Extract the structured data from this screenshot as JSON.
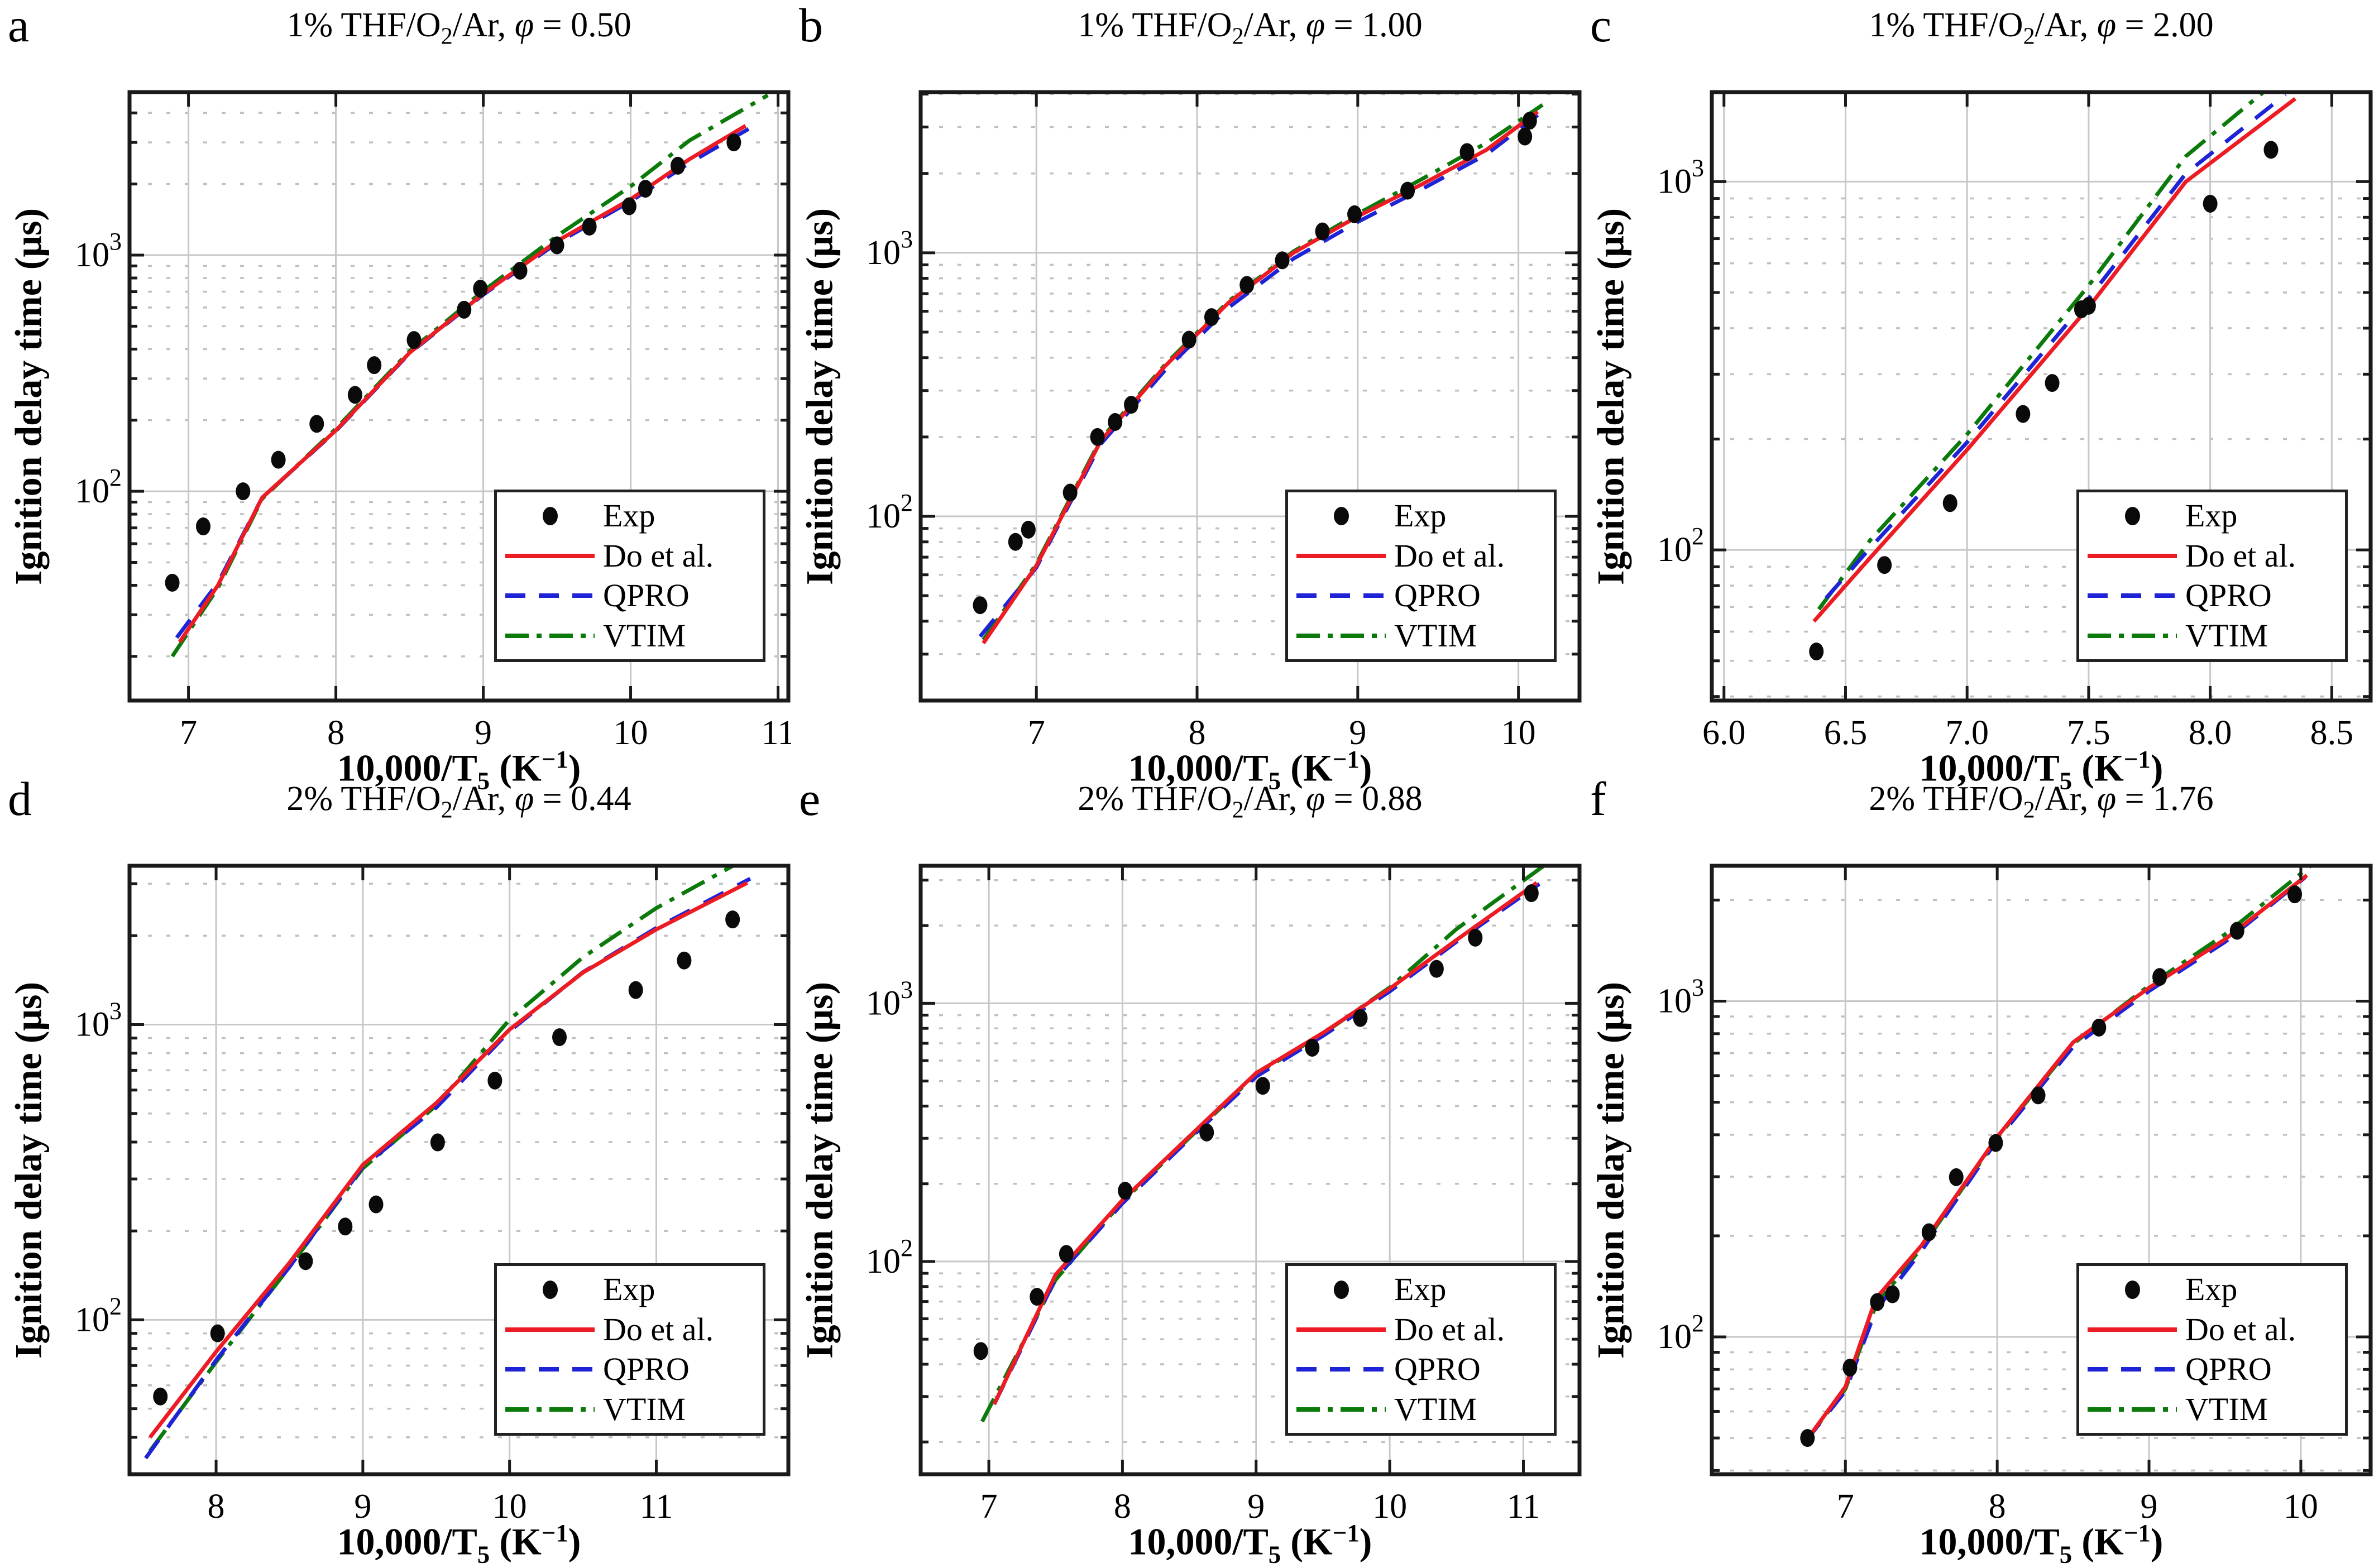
{
  "legend": {
    "exp": "Exp",
    "do": "Do et al.",
    "qpro": "QPRO",
    "vtim": "VTIM"
  },
  "axis": {
    "ylabel": "Ignition delay time (μs)",
    "xlabel_p1": "10,000/T",
    "xlabel_sub": "5",
    "xlabel_p2": " (K",
    "xlabel_sup": "−1",
    "xlabel_p3": ")"
  },
  "colors": {
    "exp": "#0a0a0a",
    "do": "#ed1c24",
    "qpro": "#1f23d6",
    "vtim": "#0b7a0b",
    "grid_major": "#c7c7c7",
    "grid_minor": "#c0c0c0",
    "spine": "#1a1a1a"
  },
  "chart_data": [
    {
      "type": "line",
      "letter": "a",
      "title_pre": "1% THF/O",
      "title_sub": "2",
      "title_mid": "/Ar, ",
      "title_phi": "φ",
      "title_eq": " = 0.50",
      "x_range": [
        6.6,
        11.07
      ],
      "y_range": [
        13,
        4900
      ],
      "x_ticks": [
        7,
        8,
        9,
        10,
        11
      ],
      "x_tick_labels": [
        "7",
        "8",
        "9",
        "10",
        "11"
      ],
      "y_tick_exponents": [
        2,
        3
      ],
      "exp_x": [
        6.89,
        7.1,
        7.37,
        7.61,
        7.87,
        8.13,
        8.26,
        8.53,
        8.87,
        8.98,
        9.25,
        9.5,
        9.72,
        9.99,
        10.1,
        10.32,
        10.7
      ],
      "exp_y": [
        41,
        71,
        100,
        136,
        193,
        256,
        342,
        437,
        587,
        721,
        859,
        1100,
        1320,
        1610,
        1910,
        2390,
        3000
      ],
      "do_x": [
        6.94,
        7.2,
        7.5,
        8.0,
        8.5,
        9.0,
        9.5,
        10.0,
        10.4,
        10.78
      ],
      "do_y": [
        23,
        40,
        94,
        181,
        386,
        686,
        1146,
        1725,
        2550,
        3530
      ],
      "qpro_x": [
        6.92,
        7.2,
        7.5,
        8.0,
        8.5,
        9.0,
        9.5,
        10.0,
        10.4,
        10.8
      ],
      "qpro_y": [
        24,
        41,
        94,
        180,
        384,
        680,
        1125,
        1690,
        2460,
        3420
      ],
      "vtim_x": [
        6.89,
        7.2,
        7.5,
        8.0,
        8.5,
        9.0,
        9.5,
        10.0,
        10.4,
        10.93
      ],
      "vtim_y": [
        20,
        39,
        93,
        184,
        392,
        705,
        1205,
        1955,
        3060,
        4750
      ]
    },
    {
      "type": "line",
      "letter": "b",
      "title_pre": "1% THF/O",
      "title_sub": "2",
      "title_mid": "/Ar, ",
      "title_phi": "φ",
      "title_eq": " = 1.00",
      "x_range": [
        6.28,
        10.38
      ],
      "y_range": [
        20,
        4070
      ],
      "x_ticks": [
        7,
        8,
        9,
        10
      ],
      "x_tick_labels": [
        "7",
        "8",
        "9",
        "10"
      ],
      "y_tick_exponents": [
        2,
        3
      ],
      "exp_x": [
        6.65,
        6.87,
        6.95,
        7.21,
        7.38,
        7.49,
        7.59,
        7.95,
        8.09,
        8.31,
        8.53,
        8.78,
        8.98,
        9.31,
        9.68,
        10.04,
        10.07
      ],
      "exp_y": [
        46,
        80,
        89,
        123,
        200,
        228,
        265,
        468,
        570,
        755,
        936,
        1205,
        1400,
        1720,
        2410,
        2760,
        3170
      ],
      "do_x": [
        6.67,
        7.0,
        7.4,
        7.8,
        8.2,
        8.6,
        9.0,
        9.4,
        9.8,
        10.12
      ],
      "do_y": [
        33,
        65,
        193,
        371,
        650,
        1000,
        1375,
        1820,
        2455,
        3430
      ],
      "qpro_x": [
        6.65,
        7.0,
        7.4,
        7.8,
        8.2,
        8.6,
        9.0,
        9.4,
        9.8,
        10.12
      ],
      "qpro_y": [
        35,
        64,
        188,
        358,
        622,
        950,
        1310,
        1745,
        2360,
        3330
      ],
      "vtim_x": [
        6.67,
        7.0,
        7.4,
        7.8,
        8.2,
        8.6,
        9.0,
        9.4,
        9.8,
        10.15
      ],
      "vtim_y": [
        34,
        66,
        196,
        376,
        658,
        1012,
        1405,
        1905,
        2610,
        3640
      ]
    },
    {
      "type": "line",
      "letter": "c",
      "title_pre": "1% THF/O",
      "title_sub": "2",
      "title_mid": "/Ar, ",
      "title_phi": "φ",
      "title_eq": " = 2.00",
      "x_range": [
        5.95,
        8.66
      ],
      "y_range": [
        39,
        1750
      ],
      "x_ticks": [
        6.0,
        6.5,
        7.0,
        7.5,
        8.0,
        8.5
      ],
      "x_tick_labels": [
        "6.0",
        "6.5",
        "7.0",
        "7.5",
        "8.0",
        "8.5"
      ],
      "y_tick_exponents": [
        2,
        3
      ],
      "exp_x": [
        6.38,
        6.66,
        6.93,
        7.23,
        7.35,
        7.47,
        7.5,
        8.0,
        8.25
      ],
      "exp_y": [
        53,
        91,
        134,
        234,
        284,
        450,
        460,
        871,
        1220
      ],
      "do_x": [
        6.37,
        6.6,
        7.0,
        7.5,
        7.9,
        8.35
      ],
      "do_y": [
        64,
        95,
        187,
        456,
        1000,
        1680
      ],
      "qpro_x": [
        6.42,
        6.6,
        7.0,
        7.5,
        7.9,
        8.31
      ],
      "qpro_y": [
        74,
        101,
        196,
        482,
        1052,
        1724
      ],
      "vtim_x": [
        6.39,
        6.6,
        7.0,
        7.5,
        7.9,
        8.22
      ],
      "vtim_y": [
        69,
        106,
        206,
        522,
        1172,
        1752
      ]
    },
    {
      "type": "line",
      "letter": "d",
      "title_pre": "2% THF/O",
      "title_sub": "2",
      "title_mid": "/Ar, ",
      "title_phi": "φ",
      "title_eq": " = 0.44",
      "x_range": [
        7.41,
        11.9
      ],
      "y_range": [
        30,
        3450
      ],
      "x_ticks": [
        8,
        9,
        10,
        11
      ],
      "x_tick_labels": [
        "8",
        "9",
        "10",
        "11"
      ],
      "y_tick_exponents": [
        2,
        3
      ],
      "exp_x": [
        7.62,
        8.01,
        8.61,
        8.88,
        9.09,
        9.51,
        9.9,
        10.34,
        10.86,
        11.19,
        11.52
      ],
      "exp_y": [
        55,
        90,
        158,
        207,
        246,
        399,
        646,
        906,
        1309,
        1648,
        2270
      ],
      "do_x": [
        7.55,
        8.0,
        8.5,
        9.0,
        9.5,
        10.0,
        10.5,
        11.0,
        11.62
      ],
      "do_y": [
        40,
        78,
        156,
        335,
        542,
        962,
        1500,
        2100,
        3020
      ],
      "qpro_x": [
        7.52,
        8.0,
        8.5,
        9.0,
        9.5,
        10.0,
        10.5,
        11.0,
        11.64
      ],
      "qpro_y": [
        34,
        73,
        151,
        330,
        523,
        950,
        1505,
        2125,
        3120
      ],
      "vtim_x": [
        7.55,
        8.0,
        8.5,
        9.0,
        9.5,
        10.0,
        10.5,
        11.0,
        11.7
      ],
      "vtim_y": [
        36,
        72,
        151,
        326,
        532,
        1040,
        1690,
        2480,
        3860
      ]
    },
    {
      "type": "line",
      "letter": "e",
      "title_pre": "2% THF/O",
      "title_sub": "2",
      "title_mid": "/Ar, ",
      "title_phi": "φ",
      "title_eq": " = 0.88",
      "x_range": [
        6.49,
        11.42
      ],
      "y_range": [
        15,
        3410
      ],
      "x_ticks": [
        7,
        8,
        9,
        10,
        11
      ],
      "x_tick_labels": [
        "7",
        "8",
        "9",
        "10",
        "11"
      ],
      "y_tick_exponents": [
        2,
        3
      ],
      "exp_x": [
        6.94,
        7.36,
        7.58,
        8.02,
        8.63,
        9.05,
        9.42,
        9.78,
        10.35,
        10.64,
        11.06
      ],
      "exp_y": [
        45,
        73,
        107,
        188,
        316,
        479,
        673,
        877,
        1360,
        1795,
        2670
      ],
      "do_x": [
        7.04,
        7.5,
        8.0,
        8.5,
        9.0,
        9.5,
        10.0,
        10.5,
        11.1
      ],
      "do_y": [
        28,
        89,
        173,
        305,
        537,
        768,
        1140,
        1760,
        2930
      ],
      "qpro_x": [
        7.04,
        7.5,
        8.0,
        8.5,
        9.0,
        9.5,
        10.0,
        10.5,
        11.12
      ],
      "qpro_y": [
        28,
        86,
        168,
        298,
        520,
        748,
        1112,
        1732,
        2900
      ],
      "vtim_x": [
        6.95,
        7.5,
        8.0,
        8.5,
        9.0,
        9.5,
        10.0,
        10.5,
        11.15
      ],
      "vtim_y": [
        24,
        85,
        171,
        301,
        532,
        762,
        1152,
        1940,
        3400
      ]
    },
    {
      "type": "line",
      "letter": "f",
      "title_pre": "2% THF/O",
      "title_sub": "2",
      "title_mid": "/Ar, ",
      "title_phi": "φ",
      "title_eq": " = 1.76",
      "x_range": [
        6.12,
        10.46
      ],
      "y_range": [
        39,
        2530
      ],
      "x_ticks": [
        7,
        8,
        9,
        10
      ],
      "x_tick_labels": [
        "7",
        "8",
        "9",
        "10"
      ],
      "y_tick_exponents": [
        2,
        3
      ],
      "exp_x": [
        6.75,
        7.03,
        7.21,
        7.31,
        7.55,
        7.73,
        7.99,
        8.27,
        8.67,
        9.07,
        9.58,
        9.96
      ],
      "exp_y": [
        50,
        81,
        127,
        134,
        205,
        299,
        378,
        524,
        834,
        1180,
        1620,
        2080
      ],
      "do_x": [
        6.74,
        7.0,
        7.2,
        7.5,
        8.0,
        8.5,
        9.0,
        9.5,
        10.04
      ],
      "do_y": [
        49,
        71,
        130,
        187,
        394,
        754,
        1096,
        1527,
        2370
      ],
      "qpro_x": [
        6.74,
        7.0,
        7.2,
        7.5,
        8.0,
        8.5,
        9.0,
        9.5,
        10.03
      ],
      "qpro_y": [
        49,
        69,
        120,
        180,
        386,
        731,
        1072,
        1500,
        2340
      ],
      "vtim_x": [
        6.74,
        7.0,
        7.2,
        7.5,
        8.0,
        8.5,
        9.0,
        9.5,
        10.06
      ],
      "vtim_y": [
        49,
        70,
        124,
        184,
        391,
        746,
        1112,
        1580,
        2520
      ]
    }
  ]
}
